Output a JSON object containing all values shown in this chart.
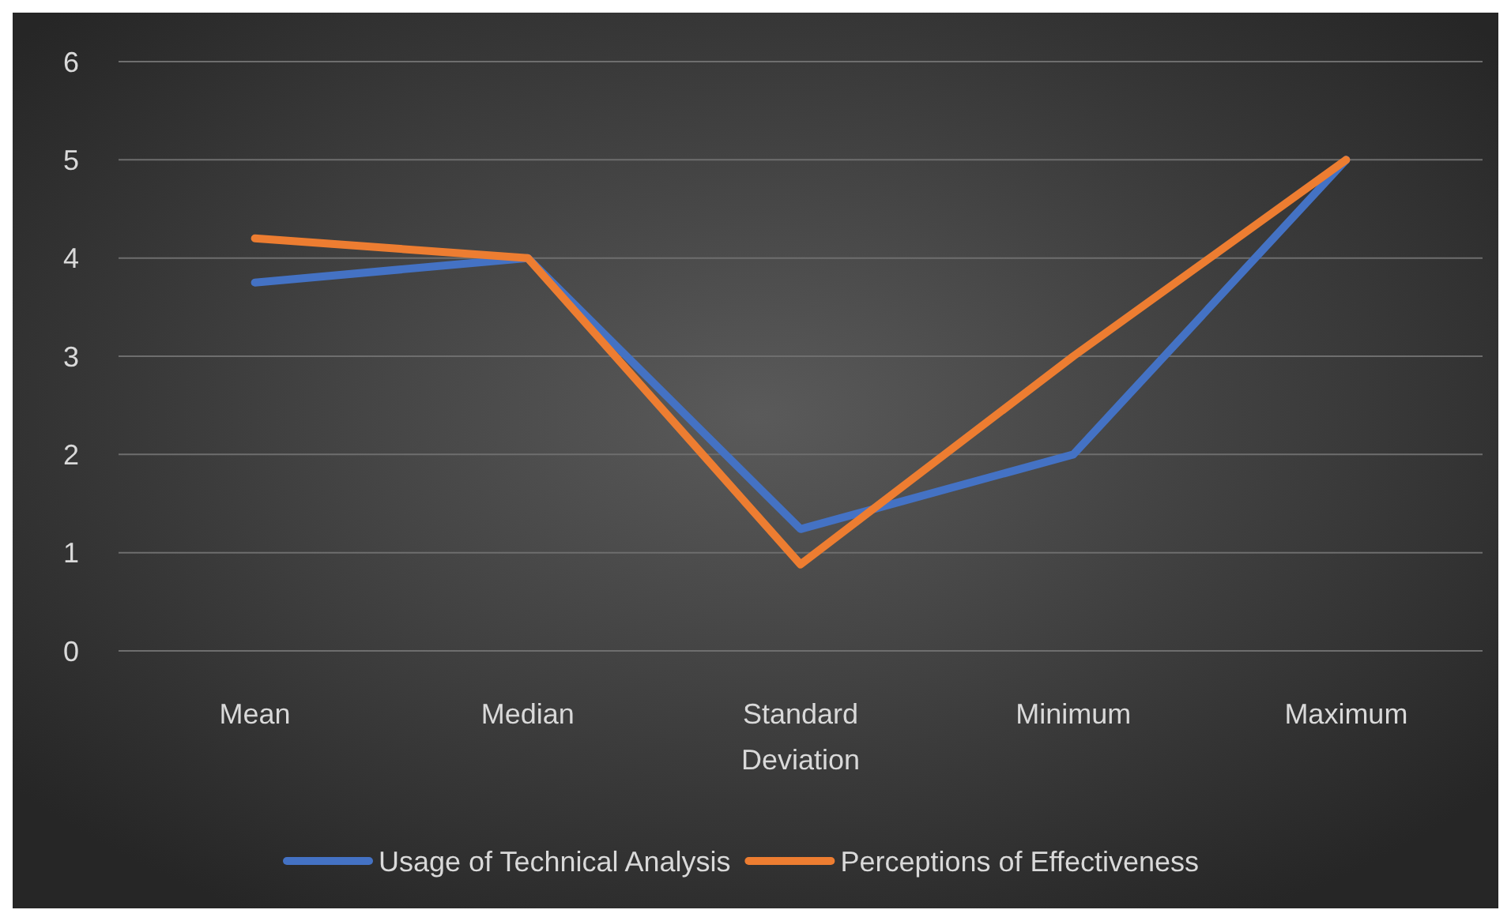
{
  "chart_data": {
    "type": "line",
    "categories": [
      "Mean",
      "Median",
      "Standard Deviation",
      "Minimum",
      "Maximum"
    ],
    "series": [
      {
        "name": "Usage of Technical Analysis",
        "color": "#4472c4",
        "values": [
          3.75,
          4,
          1.24,
          2,
          5
        ]
      },
      {
        "name": "Perceptions of Effectiveness",
        "color": "#ed7d31",
        "values": [
          4.2,
          4,
          0.88,
          3,
          5
        ]
      }
    ],
    "ylim": [
      0,
      6
    ],
    "yticks": [
      0,
      1,
      2,
      3,
      4,
      5,
      6
    ],
    "grid": "y",
    "legend": "bottom",
    "marker": "none",
    "line_style": "solid"
  }
}
